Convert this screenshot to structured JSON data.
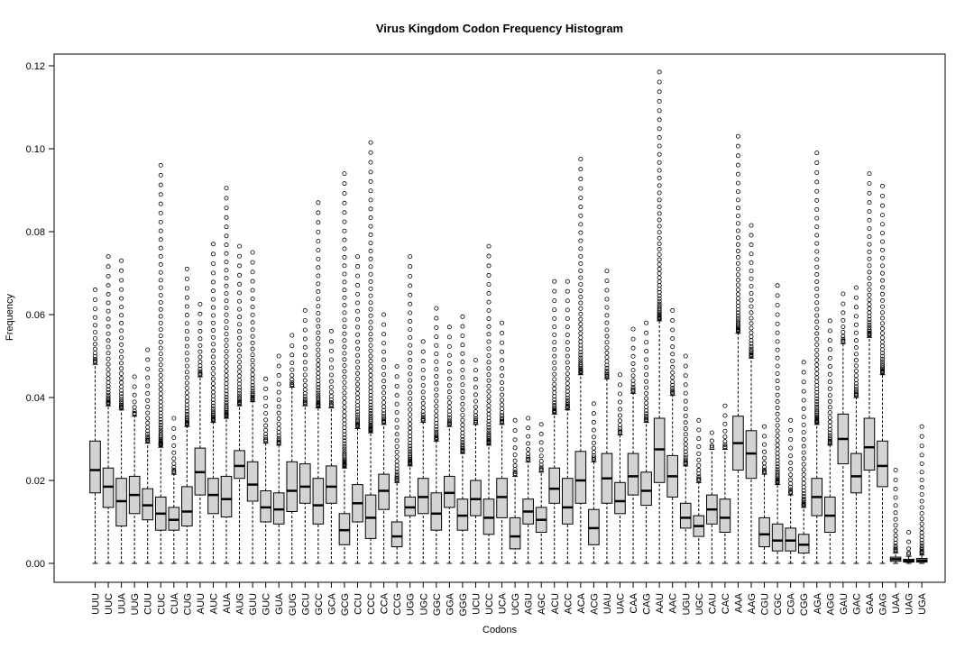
{
  "chart_data": {
    "type": "box",
    "title": "Virus  Kingdom Codon Frequency Histogram",
    "xlabel": "Codons",
    "ylabel": "Frequency",
    "ylim": [
      0.0,
      0.125
    ],
    "yticks": [
      "0.00",
      "0.02",
      "0.04",
      "0.06",
      "0.08",
      "0.10",
      "0.12"
    ],
    "box_fill": "#d3d3d3",
    "categories": [
      "UUU",
      "UUC",
      "UUA",
      "UUG",
      "CUU",
      "CUC",
      "CUA",
      "CUG",
      "AUU",
      "AUC",
      "AUA",
      "AUG",
      "GUU",
      "GUC",
      "GUA",
      "GUG",
      "GCU",
      "GCC",
      "GCA",
      "GCG",
      "CCU",
      "CCC",
      "CCA",
      "CCG",
      "UGG",
      "UGC",
      "GGC",
      "GGA",
      "GGG",
      "UCU",
      "UCC",
      "UCA",
      "UCG",
      "AGU",
      "AGC",
      "ACU",
      "ACC",
      "ACA",
      "ACG",
      "UAU",
      "UAC",
      "CAA",
      "CAG",
      "AAU",
      "AAC",
      "UGU",
      "UGC",
      "CAU",
      "CAC",
      "AAA",
      "AAG",
      "CGU",
      "CGC",
      "CGA",
      "CGG",
      "AGA",
      "AGG",
      "GAU",
      "GAC",
      "GAA",
      "GAG",
      "UAA",
      "UAG",
      "UGA"
    ],
    "boxes": [
      {
        "q1": 0.017,
        "median": 0.0225,
        "q3": 0.0295,
        "whisker_high": 0.048,
        "outlier_max": 0.066
      },
      {
        "q1": 0.0135,
        "median": 0.0185,
        "q3": 0.023,
        "whisker_high": 0.038,
        "outlier_max": 0.074
      },
      {
        "q1": 0.009,
        "median": 0.015,
        "q3": 0.0205,
        "whisker_high": 0.037,
        "outlier_max": 0.073
      },
      {
        "q1": 0.012,
        "median": 0.0165,
        "q3": 0.021,
        "whisker_high": 0.0355,
        "outlier_max": 0.045
      },
      {
        "q1": 0.0105,
        "median": 0.014,
        "q3": 0.018,
        "whisker_high": 0.029,
        "outlier_max": 0.0515
      },
      {
        "q1": 0.008,
        "median": 0.012,
        "q3": 0.016,
        "whisker_high": 0.028,
        "outlier_max": 0.096
      },
      {
        "q1": 0.008,
        "median": 0.0105,
        "q3": 0.0135,
        "whisker_high": 0.0215,
        "outlier_max": 0.035
      },
      {
        "q1": 0.009,
        "median": 0.0125,
        "q3": 0.0185,
        "whisker_high": 0.033,
        "outlier_max": 0.071
      },
      {
        "q1": 0.0165,
        "median": 0.022,
        "q3": 0.0278,
        "whisker_high": 0.045,
        "outlier_max": 0.0625
      },
      {
        "q1": 0.012,
        "median": 0.0165,
        "q3": 0.0205,
        "whisker_high": 0.034,
        "outlier_max": 0.077
      },
      {
        "q1": 0.0112,
        "median": 0.0155,
        "q3": 0.021,
        "whisker_high": 0.035,
        "outlier_max": 0.0905
      },
      {
        "q1": 0.0205,
        "median": 0.0235,
        "q3": 0.0272,
        "whisker_high": 0.038,
        "outlier_max": 0.0765
      },
      {
        "q1": 0.015,
        "median": 0.019,
        "q3": 0.0245,
        "whisker_high": 0.039,
        "outlier_max": 0.075
      },
      {
        "q1": 0.01,
        "median": 0.0135,
        "q3": 0.0175,
        "whisker_high": 0.029,
        "outlier_max": 0.0445
      },
      {
        "q1": 0.0095,
        "median": 0.013,
        "q3": 0.017,
        "whisker_high": 0.0285,
        "outlier_max": 0.05
      },
      {
        "q1": 0.0125,
        "median": 0.0175,
        "q3": 0.0245,
        "whisker_high": 0.0425,
        "outlier_max": 0.055
      },
      {
        "q1": 0.0145,
        "median": 0.0185,
        "q3": 0.024,
        "whisker_high": 0.038,
        "outlier_max": 0.061
      },
      {
        "q1": 0.0095,
        "median": 0.014,
        "q3": 0.0205,
        "whisker_high": 0.0375,
        "outlier_max": 0.087
      },
      {
        "q1": 0.0145,
        "median": 0.0185,
        "q3": 0.0235,
        "whisker_high": 0.0375,
        "outlier_max": 0.056
      },
      {
        "q1": 0.0045,
        "median": 0.008,
        "q3": 0.012,
        "whisker_high": 0.023,
        "outlier_max": 0.094
      },
      {
        "q1": 0.01,
        "median": 0.0145,
        "q3": 0.019,
        "whisker_high": 0.0325,
        "outlier_max": 0.074
      },
      {
        "q1": 0.006,
        "median": 0.011,
        "q3": 0.0165,
        "whisker_high": 0.0315,
        "outlier_max": 0.1015
      },
      {
        "q1": 0.013,
        "median": 0.0175,
        "q3": 0.0215,
        "whisker_high": 0.0335,
        "outlier_max": 0.06
      },
      {
        "q1": 0.004,
        "median": 0.0065,
        "q3": 0.01,
        "whisker_high": 0.0195,
        "outlier_max": 0.0475
      },
      {
        "q1": 0.0115,
        "median": 0.0135,
        "q3": 0.016,
        "whisker_high": 0.0235,
        "outlier_max": 0.074
      },
      {
        "q1": 0.012,
        "median": 0.016,
        "q3": 0.0205,
        "whisker_high": 0.034,
        "outlier_max": 0.0535
      },
      {
        "q1": 0.008,
        "median": 0.012,
        "q3": 0.017,
        "whisker_high": 0.0295,
        "outlier_max": 0.0615
      },
      {
        "q1": 0.0135,
        "median": 0.017,
        "q3": 0.021,
        "whisker_high": 0.033,
        "outlier_max": 0.057
      },
      {
        "q1": 0.008,
        "median": 0.0115,
        "q3": 0.0155,
        "whisker_high": 0.0265,
        "outlier_max": 0.0595
      },
      {
        "q1": 0.0115,
        "median": 0.0155,
        "q3": 0.02,
        "whisker_high": 0.0335,
        "outlier_max": 0.049
      },
      {
        "q1": 0.007,
        "median": 0.011,
        "q3": 0.0155,
        "whisker_high": 0.0285,
        "outlier_max": 0.0765
      },
      {
        "q1": 0.011,
        "median": 0.016,
        "q3": 0.0205,
        "whisker_high": 0.0335,
        "outlier_max": 0.058
      },
      {
        "q1": 0.0035,
        "median": 0.0065,
        "q3": 0.011,
        "whisker_high": 0.021,
        "outlier_max": 0.0345
      },
      {
        "q1": 0.0095,
        "median": 0.0125,
        "q3": 0.0155,
        "whisker_high": 0.0245,
        "outlier_max": 0.035
      },
      {
        "q1": 0.0075,
        "median": 0.0105,
        "q3": 0.0135,
        "whisker_high": 0.022,
        "outlier_max": 0.0335
      },
      {
        "q1": 0.0145,
        "median": 0.018,
        "q3": 0.023,
        "whisker_high": 0.036,
        "outlier_max": 0.068
      },
      {
        "q1": 0.0095,
        "median": 0.0135,
        "q3": 0.0205,
        "whisker_high": 0.037,
        "outlier_max": 0.068
      },
      {
        "q1": 0.0145,
        "median": 0.02,
        "q3": 0.027,
        "whisker_high": 0.0455,
        "outlier_max": 0.0975
      },
      {
        "q1": 0.0045,
        "median": 0.0085,
        "q3": 0.013,
        "whisker_high": 0.0245,
        "outlier_max": 0.0385
      },
      {
        "q1": 0.0145,
        "median": 0.0205,
        "q3": 0.0265,
        "whisker_high": 0.0445,
        "outlier_max": 0.0705
      },
      {
        "q1": 0.012,
        "median": 0.015,
        "q3": 0.0195,
        "whisker_high": 0.031,
        "outlier_max": 0.0455
      },
      {
        "q1": 0.0165,
        "median": 0.021,
        "q3": 0.0265,
        "whisker_high": 0.041,
        "outlier_max": 0.0565
      },
      {
        "q1": 0.014,
        "median": 0.0175,
        "q3": 0.022,
        "whisker_high": 0.034,
        "outlier_max": 0.058
      },
      {
        "q1": 0.0195,
        "median": 0.0275,
        "q3": 0.035,
        "whisker_high": 0.0585,
        "outlier_max": 0.1185
      },
      {
        "q1": 0.016,
        "median": 0.021,
        "q3": 0.026,
        "whisker_high": 0.0405,
        "outlier_max": 0.061
      },
      {
        "q1": 0.0085,
        "median": 0.011,
        "q3": 0.0145,
        "whisker_high": 0.0235,
        "outlier_max": 0.05
      },
      {
        "q1": 0.0065,
        "median": 0.009,
        "q3": 0.0115,
        "whisker_high": 0.0195,
        "outlier_max": 0.0345
      },
      {
        "q1": 0.0095,
        "median": 0.013,
        "q3": 0.0165,
        "whisker_high": 0.0275,
        "outlier_max": 0.0315
      },
      {
        "q1": 0.0075,
        "median": 0.011,
        "q3": 0.0155,
        "whisker_high": 0.0275,
        "outlier_max": 0.038
      },
      {
        "q1": 0.0225,
        "median": 0.029,
        "q3": 0.0355,
        "whisker_high": 0.0555,
        "outlier_max": 0.103
      },
      {
        "q1": 0.0205,
        "median": 0.0265,
        "q3": 0.032,
        "whisker_high": 0.0495,
        "outlier_max": 0.0815
      },
      {
        "q1": 0.004,
        "median": 0.007,
        "q3": 0.011,
        "whisker_high": 0.0215,
        "outlier_max": 0.033
      },
      {
        "q1": 0.003,
        "median": 0.0055,
        "q3": 0.0095,
        "whisker_high": 0.019,
        "outlier_max": 0.067
      },
      {
        "q1": 0.003,
        "median": 0.0055,
        "q3": 0.0085,
        "whisker_high": 0.0165,
        "outlier_max": 0.0345
      },
      {
        "q1": 0.0025,
        "median": 0.0045,
        "q3": 0.007,
        "whisker_high": 0.0135,
        "outlier_max": 0.0485
      },
      {
        "q1": 0.0115,
        "median": 0.016,
        "q3": 0.0205,
        "whisker_high": 0.0335,
        "outlier_max": 0.099
      },
      {
        "q1": 0.0075,
        "median": 0.0115,
        "q3": 0.016,
        "whisker_high": 0.0285,
        "outlier_max": 0.0585
      },
      {
        "q1": 0.024,
        "median": 0.03,
        "q3": 0.036,
        "whisker_high": 0.053,
        "outlier_max": 0.065
      },
      {
        "q1": 0.017,
        "median": 0.021,
        "q3": 0.0265,
        "whisker_high": 0.04,
        "outlier_max": 0.0665
      },
      {
        "q1": 0.0225,
        "median": 0.028,
        "q3": 0.035,
        "whisker_high": 0.0545,
        "outlier_max": 0.094
      },
      {
        "q1": 0.0185,
        "median": 0.0235,
        "q3": 0.0295,
        "whisker_high": 0.0455,
        "outlier_max": 0.091
      },
      {
        "q1": 0.0005,
        "median": 0.001,
        "q3": 0.0015,
        "whisker_high": 0.0025,
        "outlier_max": 0.0225
      },
      {
        "q1": 0.0003,
        "median": 0.0006,
        "q3": 0.001,
        "whisker_high": 0.0017,
        "outlier_max": 0.0075
      },
      {
        "q1": 0.0003,
        "median": 0.0007,
        "q3": 0.0012,
        "whisker_high": 0.002,
        "outlier_max": 0.033
      }
    ]
  }
}
